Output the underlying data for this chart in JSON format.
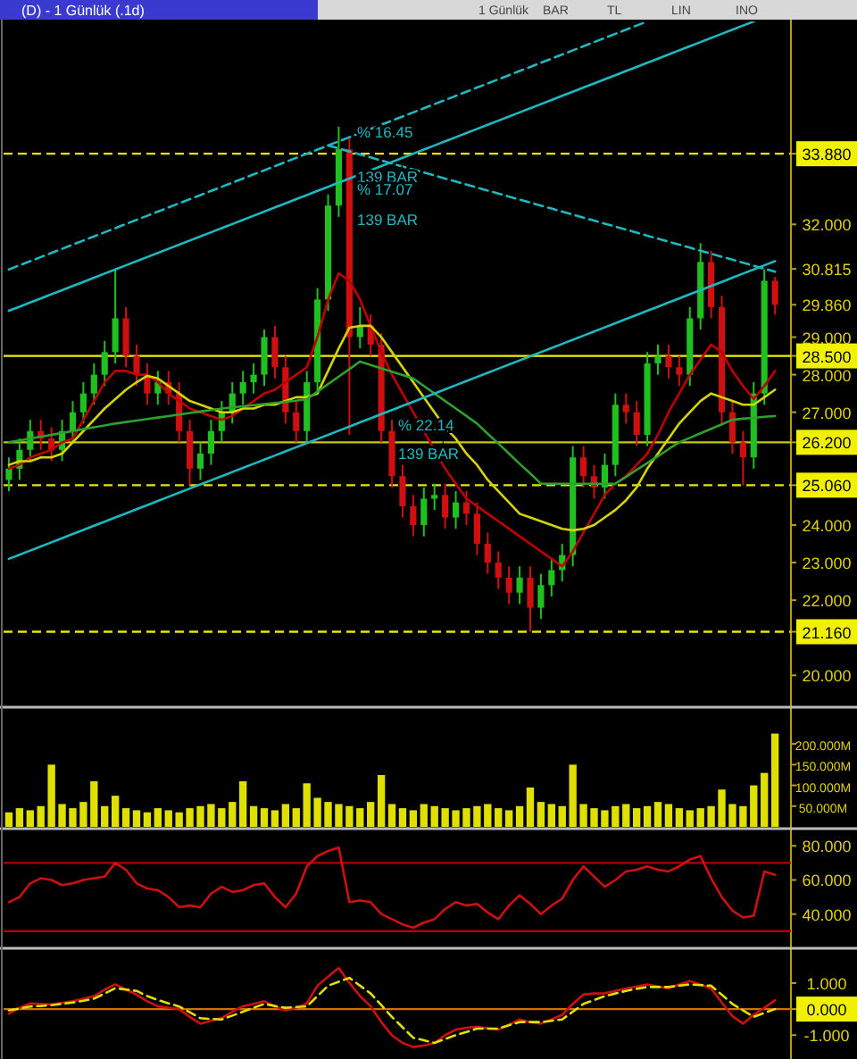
{
  "chart_data": [
    {
      "type": "candlestick",
      "title": "(D) - 1 Günlük (.1d)",
      "tick_labels": "y",
      "ylim": [
        19.2,
        37.4
      ],
      "yticks": [
        {
          "value": 20,
          "label": "20.000"
        },
        {
          "value": 21.16,
          "label": "21.160"
        },
        {
          "value": 22,
          "label": "22.000"
        },
        {
          "value": 23,
          "label": "23.000"
        },
        {
          "value": 24,
          "label": "24.000"
        },
        {
          "value": 25.06,
          "label": "25.060"
        },
        {
          "value": 26.2,
          "label": "26.200"
        },
        {
          "value": 27,
          "label": "27.000"
        },
        {
          "value": 28,
          "label": "28.000"
        },
        {
          "value": 28.5,
          "label": "28.500"
        },
        {
          "value": 29,
          "label": "29.000"
        },
        {
          "value": 29.86,
          "label": "29.860"
        },
        {
          "value": 30.815,
          "label": "30.815"
        },
        {
          "value": 32,
          "label": "32.000"
        },
        {
          "value": 33.88,
          "label": "33.880"
        }
      ],
      "categories": [
        null,
        null,
        null,
        null,
        null,
        null,
        null,
        null,
        null,
        null,
        null,
        null,
        null,
        null,
        null,
        null,
        null,
        null,
        null,
        null,
        null,
        null,
        null,
        null,
        null,
        null,
        null,
        null,
        null,
        null,
        null,
        null,
        null,
        null,
        null,
        null,
        null,
        null,
        null,
        null,
        null,
        null,
        null,
        null,
        null,
        null,
        null,
        null,
        null,
        null,
        null,
        null,
        null,
        null,
        null,
        null,
        null,
        null,
        null,
        null,
        null,
        null,
        null,
        null,
        null,
        null,
        null,
        null,
        null,
        null,
        null,
        null,
        null
      ],
      "ohlc": [
        [
          25.2,
          25.8,
          24.9,
          25.5
        ],
        [
          25.5,
          26.3,
          25.2,
          26.0
        ],
        [
          26.0,
          26.8,
          25.7,
          26.5
        ],
        [
          26.5,
          26.8,
          26.0,
          26.3
        ],
        [
          26.3,
          26.6,
          25.7,
          26.0
        ],
        [
          26.0,
          26.8,
          25.7,
          26.5
        ],
        [
          26.5,
          27.3,
          26.2,
          27.0
        ],
        [
          27.0,
          27.8,
          26.7,
          27.5
        ],
        [
          27.5,
          28.3,
          27.2,
          28.0
        ],
        [
          28.0,
          28.9,
          27.7,
          28.6
        ],
        [
          28.6,
          30.8,
          28.3,
          29.5
        ],
        [
          29.5,
          29.8,
          28.2,
          28.5
        ],
        [
          28.5,
          28.8,
          27.7,
          28.0
        ],
        [
          28.0,
          28.3,
          27.2,
          27.5
        ],
        [
          27.5,
          28.1,
          27.2,
          27.8
        ],
        [
          27.8,
          28.1,
          27.2,
          27.5
        ],
        [
          27.5,
          27.8,
          26.2,
          26.5
        ],
        [
          26.5,
          26.8,
          25.06,
          25.5
        ],
        [
          25.5,
          26.2,
          25.2,
          25.9
        ],
        [
          25.9,
          26.8,
          25.6,
          26.5
        ],
        [
          26.5,
          27.3,
          26.2,
          27.0
        ],
        [
          27.0,
          27.8,
          26.7,
          27.5
        ],
        [
          27.5,
          28.1,
          27.2,
          27.8
        ],
        [
          27.8,
          28.3,
          27.5,
          28.0
        ],
        [
          28.0,
          29.2,
          27.7,
          29.0
        ],
        [
          29.0,
          29.3,
          27.9,
          28.2
        ],
        [
          28.2,
          28.5,
          26.7,
          27.0
        ],
        [
          27.0,
          27.3,
          26.2,
          26.5
        ],
        [
          26.5,
          28.1,
          26.2,
          27.8
        ],
        [
          27.8,
          30.3,
          27.5,
          30.0
        ],
        [
          30.0,
          32.8,
          29.7,
          32.5
        ],
        [
          32.5,
          34.6,
          32.2,
          34.0
        ],
        [
          34.0,
          34.3,
          26.4,
          29.0
        ],
        [
          29.0,
          29.8,
          28.7,
          29.3
        ],
        [
          29.3,
          29.6,
          28.5,
          28.8
        ],
        [
          28.8,
          29.1,
          26.2,
          26.5
        ],
        [
          26.5,
          26.8,
          25.0,
          25.3
        ],
        [
          25.3,
          25.6,
          24.2,
          24.5
        ],
        [
          24.5,
          24.8,
          23.7,
          24.0
        ],
        [
          24.0,
          25.0,
          23.7,
          24.7
        ],
        [
          24.7,
          25.1,
          24.4,
          24.8
        ],
        [
          24.8,
          25.1,
          23.9,
          24.2
        ],
        [
          24.2,
          24.9,
          23.9,
          24.6
        ],
        [
          24.6,
          24.9,
          24.0,
          24.3
        ],
        [
          24.3,
          24.6,
          23.2,
          23.5
        ],
        [
          23.5,
          23.8,
          22.7,
          23.0
        ],
        [
          23.0,
          23.3,
          22.3,
          22.6
        ],
        [
          22.6,
          22.9,
          21.9,
          22.2
        ],
        [
          22.2,
          22.9,
          21.9,
          22.6
        ],
        [
          22.6,
          22.9,
          21.16,
          21.8
        ],
        [
          21.8,
          22.7,
          21.5,
          22.4
        ],
        [
          22.4,
          23.1,
          22.1,
          22.8
        ],
        [
          22.8,
          23.5,
          22.5,
          23.2
        ],
        [
          23.2,
          26.1,
          22.9,
          25.8
        ],
        [
          25.8,
          26.1,
          25.0,
          25.3
        ],
        [
          25.3,
          25.6,
          24.7,
          25.0
        ],
        [
          25.0,
          25.9,
          24.7,
          25.6
        ],
        [
          25.6,
          27.5,
          25.3,
          27.2
        ],
        [
          27.2,
          27.5,
          26.7,
          27.0
        ],
        [
          27.0,
          27.3,
          26.1,
          26.4
        ],
        [
          26.4,
          28.6,
          26.1,
          28.3
        ],
        [
          28.3,
          28.8,
          28.0,
          28.5
        ],
        [
          28.5,
          28.8,
          27.9,
          28.2
        ],
        [
          28.2,
          28.5,
          27.7,
          28.0
        ],
        [
          28.0,
          29.8,
          27.7,
          29.5
        ],
        [
          29.5,
          31.5,
          29.2,
          31.0
        ],
        [
          31.0,
          31.3,
          29.5,
          29.8
        ],
        [
          29.8,
          30.1,
          26.7,
          27.0
        ],
        [
          27.0,
          27.3,
          25.9,
          26.2
        ],
        [
          26.2,
          26.5,
          25.06,
          25.8
        ],
        [
          25.8,
          27.8,
          25.5,
          27.5
        ],
        [
          27.5,
          30.8,
          27.2,
          30.5
        ],
        [
          30.5,
          30.6,
          29.6,
          29.86
        ]
      ],
      "ref_lines": [
        {
          "axis": "y",
          "value": 33.88,
          "color": "#e6e600",
          "line_style": "dashed"
        },
        {
          "axis": "y",
          "value": 28.5,
          "color": "#f0f000",
          "line_style": "solid"
        },
        {
          "axis": "y",
          "value": 26.2,
          "color": "#c8c800",
          "line_style": "solid"
        },
        {
          "axis": "y",
          "value": 25.06,
          "color": "#e6e600",
          "line_style": "dashed"
        },
        {
          "axis": "y",
          "value": 21.16,
          "color": "#e6e600",
          "line_style": "dashed"
        }
      ],
      "annotations": [
        "1 Günlük",
        "BAR",
        "TL",
        "LIN",
        "INO"
      ]
    },
    {
      "type": "line",
      "tick_labels": false,
      "ylim": [
        19.2,
        37.4
      ],
      "categories": [
        null,
        null,
        null,
        null,
        null,
        null,
        null,
        null,
        null,
        null,
        null,
        null,
        null,
        null,
        null,
        null,
        null,
        null,
        null,
        null,
        null,
        null,
        null,
        null,
        null,
        null,
        null,
        null,
        null,
        null,
        null,
        null,
        null,
        null,
        null,
        null,
        null,
        null,
        null,
        null,
        null,
        null,
        null,
        null,
        null,
        null,
        null,
        null,
        null,
        null,
        null,
        null,
        null,
        null,
        null,
        null,
        null,
        null,
        null,
        null,
        null,
        null,
        null,
        null,
        null,
        null,
        null,
        null,
        null,
        null,
        null,
        null,
        null
      ],
      "annotations": [
        "% 16.45",
        "139 BAR",
        "% 17.07",
        "139 BAR",
        "% 22.14",
        "139 BAR"
      ],
      "series": [
        {
          "color": "#c00000",
          "values": [
            25.5,
            25.6,
            25.8,
            25.9,
            26.0,
            26.2,
            26.3,
            26.8,
            27.3,
            27.8,
            28.1,
            28.1,
            28.0,
            28.0,
            27.8,
            27.5,
            27.3,
            27.1,
            27.0,
            26.9,
            26.8,
            26.9,
            27.1,
            27.3,
            27.5,
            27.6,
            27.8,
            28.0,
            28.2,
            29.0,
            30.0,
            30.7,
            30.5,
            30.0,
            29.3,
            28.6,
            28.0,
            27.5,
            27.0,
            26.5,
            26.0,
            25.5,
            25.1,
            24.7,
            24.5,
            24.3,
            24.1,
            23.9,
            23.7,
            23.5,
            23.3,
            23.1,
            22.9,
            23.3,
            23.8,
            24.3,
            24.8,
            25.1,
            25.3,
            25.6,
            25.9,
            26.4,
            27.0,
            27.5,
            28.0,
            28.4,
            28.8,
            28.6,
            28.1,
            27.7,
            27.35,
            27.7,
            28.1
          ]
        },
        {
          "color": "#d4d400",
          "values": [
            25.6,
            25.7,
            25.7,
            25.8,
            25.8,
            25.9,
            26.2,
            26.5,
            26.8,
            27.1,
            27.35,
            27.6,
            27.8,
            27.97,
            27.9,
            27.7,
            27.5,
            27.3,
            27.2,
            27.1,
            27.0,
            27.0,
            27.1,
            27.1,
            27.2,
            27.2,
            27.3,
            27.4,
            27.4,
            27.5,
            28.1,
            28.7,
            29.25,
            29.3,
            29.3,
            29.0,
            28.6,
            28.2,
            27.8,
            27.4,
            27.0,
            26.6,
            26.3,
            25.9,
            25.6,
            25.2,
            24.9,
            24.6,
            24.3,
            24.2,
            24.1,
            24.0,
            23.9,
            23.86,
            23.9,
            24.0,
            24.2,
            24.4,
            24.66,
            25.0,
            25.5,
            25.9,
            26.3,
            26.7,
            27.0,
            27.3,
            27.5,
            27.4,
            27.3,
            27.2,
            27.2,
            27.4,
            27.6
          ]
        },
        {
          "color": "#2ea02e",
          "values": [
            26.2,
            26.25,
            26.3,
            26.35,
            26.4,
            26.45,
            26.5,
            26.55,
            26.6,
            26.65,
            26.7,
            26.74,
            26.78,
            26.82,
            26.86,
            26.9,
            26.94,
            26.98,
            27.02,
            27.06,
            27.1,
            27.13,
            27.16,
            27.19,
            27.22,
            27.25,
            27.28,
            27.31,
            27.35,
            27.55,
            27.75,
            27.95,
            28.15,
            28.35,
            28.26,
            28.17,
            28.08,
            27.99,
            27.9,
            27.7,
            27.5,
            27.3,
            27.1,
            26.9,
            26.7,
            26.43,
            26.17,
            25.9,
            25.63,
            25.37,
            25.1,
            25.1,
            25.1,
            25.1,
            25.1,
            25.1,
            25.1,
            25.1,
            25.28,
            25.47,
            25.65,
            25.83,
            26.02,
            26.2,
            26.32,
            26.44,
            26.56,
            26.68,
            26.8,
            26.83,
            26.85,
            26.88,
            26.9
          ]
        },
        {
          "color": "#1fb8c0",
          "values": [
            23.1,
            23.21,
            23.32,
            23.43,
            23.54,
            23.65,
            23.76,
            23.87,
            23.98,
            24.09,
            24.2,
            24.31,
            24.42,
            24.53,
            24.64,
            24.75,
            24.86,
            24.97,
            25.08,
            25.19,
            25.3,
            25.41,
            25.52,
            25.63,
            25.74,
            25.85,
            25.96,
            26.07,
            26.18,
            26.29,
            26.4,
            26.51,
            26.62,
            26.73,
            26.84,
            26.95,
            27.06,
            27.17,
            27.28,
            27.39,
            27.5,
            27.61,
            27.72,
            27.83,
            27.94,
            28.05,
            28.16,
            28.27,
            28.38,
            28.49,
            28.6,
            28.71,
            28.82,
            28.93,
            29.04,
            29.15,
            29.26,
            29.37,
            29.48,
            29.59,
            29.7,
            29.81,
            29.92,
            30.03,
            30.14,
            30.25,
            30.36,
            30.47,
            30.58,
            30.69,
            30.8,
            30.91,
            31.02
          ]
        },
        {
          "color": "#1fb8c0",
          "values": [
            29.7,
            29.81,
            29.92,
            30.03,
            30.14,
            30.25,
            30.36,
            30.47,
            30.58,
            30.69,
            30.8,
            30.91,
            31.02,
            31.13,
            31.24,
            31.35,
            31.46,
            31.57,
            31.68,
            31.79,
            31.9,
            32.01,
            32.12,
            32.23,
            32.34,
            32.45,
            32.56,
            32.67,
            32.78,
            32.89,
            33.0,
            33.11,
            33.22,
            33.33,
            33.44,
            33.55,
            33.66,
            33.77,
            33.88,
            33.99,
            34.1,
            34.21,
            34.32,
            34.43,
            34.54,
            34.65,
            34.76,
            34.87,
            34.98,
            35.09,
            35.2,
            35.31,
            35.42,
            35.53,
            35.64,
            35.75,
            35.86,
            35.97,
            36.08,
            36.19,
            36.3,
            36.41,
            36.52,
            36.63,
            36.74,
            36.85,
            36.96,
            37.07,
            37.18,
            37.29,
            37.4,
            null,
            null
          ]
        },
        {
          "color": "#1fb8c0",
          "line_style": "dashed",
          "values": [
            30.8,
            30.91,
            31.02,
            31.13,
            31.24,
            31.35,
            31.46,
            31.57,
            31.68,
            31.79,
            31.9,
            32.01,
            32.12,
            32.23,
            32.34,
            32.45,
            32.56,
            32.67,
            32.78,
            32.89,
            33.0,
            33.11,
            33.22,
            33.33,
            33.44,
            33.55,
            33.66,
            33.77,
            33.88,
            33.99,
            34.1,
            34.21,
            34.32,
            34.43,
            34.54,
            34.65,
            34.76,
            34.87,
            34.98,
            35.09,
            35.2,
            35.31,
            35.42,
            35.53,
            35.64,
            35.75,
            35.86,
            35.97,
            36.08,
            36.19,
            36.3,
            36.41,
            36.52,
            36.63,
            36.74,
            36.85,
            36.96,
            37.07,
            37.18,
            37.29,
            37.4,
            null,
            null,
            null,
            null,
            null,
            null,
            null,
            null,
            null,
            null,
            null,
            null
          ]
        },
        {
          "color": "#1fb8c0",
          "line_style": "dashed",
          "values": [
            null,
            null,
            null,
            null,
            null,
            null,
            null,
            null,
            null,
            null,
            null,
            null,
            null,
            null,
            null,
            null,
            null,
            null,
            null,
            null,
            null,
            null,
            null,
            null,
            null,
            null,
            null,
            null,
            null,
            null,
            34.1,
            34.02,
            33.94,
            33.86,
            33.78,
            33.7,
            33.62,
            33.54,
            33.46,
            33.38,
            33.3,
            33.22,
            33.14,
            33.06,
            32.98,
            32.9,
            32.82,
            32.74,
            32.66,
            32.58,
            32.5,
            32.42,
            32.34,
            32.26,
            32.18,
            32.1,
            32.02,
            31.94,
            31.86,
            31.78,
            31.7,
            31.62,
            31.54,
            31.46,
            31.38,
            31.3,
            31.22,
            31.14,
            31.06,
            30.98,
            30.9,
            30.82,
            30.74
          ]
        }
      ]
    },
    {
      "type": "bar",
      "tick_labels": "y",
      "color": "#e0e000",
      "ylim": [
        0,
        280
      ],
      "yticks": [
        {
          "value": 50,
          "label": "50.000M"
        },
        {
          "value": 100,
          "label": "100.000M"
        },
        {
          "value": 150,
          "label": "150.000M"
        },
        {
          "value": 200,
          "label": "200.000M"
        }
      ],
      "categories": [
        null,
        null,
        null,
        null,
        null,
        null,
        null,
        null,
        null,
        null,
        null,
        null,
        null,
        null,
        null,
        null,
        null,
        null,
        null,
        null,
        null,
        null,
        null,
        null,
        null,
        null,
        null,
        null,
        null,
        null,
        null,
        null,
        null,
        null,
        null,
        null,
        null,
        null,
        null,
        null,
        null,
        null,
        null,
        null,
        null,
        null,
        null,
        null,
        null,
        null,
        null,
        null,
        null,
        null,
        null,
        null,
        null,
        null,
        null,
        null,
        null,
        null,
        null,
        null,
        null,
        null,
        null,
        null,
        null,
        null,
        null,
        null,
        null
      ],
      "values": [
        35,
        45,
        40,
        50,
        150,
        55,
        45,
        60,
        110,
        50,
        75,
        45,
        40,
        35,
        45,
        40,
        35,
        45,
        50,
        55,
        45,
        60,
        110,
        50,
        45,
        40,
        55,
        45,
        105,
        70,
        60,
        55,
        50,
        45,
        60,
        125,
        55,
        45,
        40,
        55,
        50,
        45,
        40,
        45,
        50,
        55,
        45,
        40,
        50,
        95,
        60,
        55,
        50,
        150,
        55,
        45,
        40,
        50,
        55,
        45,
        50,
        60,
        55,
        45,
        40,
        45,
        50,
        90,
        55,
        50,
        100,
        130,
        225
      ]
    },
    {
      "type": "line",
      "tick_labels": "y",
      "ylim": [
        21,
        88
      ],
      "yticks": [
        {
          "value": 40,
          "label": "40.000"
        },
        {
          "value": 60,
          "label": "60.000"
        },
        {
          "value": 80,
          "label": "80.000"
        }
      ],
      "categories": [
        null,
        null,
        null,
        null,
        null,
        null,
        null,
        null,
        null,
        null,
        null,
        null,
        null,
        null,
        null,
        null,
        null,
        null,
        null,
        null,
        null,
        null,
        null,
        null,
        null,
        null,
        null,
        null,
        null,
        null,
        null,
        null,
        null,
        null,
        null,
        null,
        null,
        null,
        null,
        null,
        null,
        null,
        null,
        null,
        null,
        null,
        null,
        null,
        null,
        null,
        null,
        null,
        null,
        null,
        null,
        null,
        null,
        null,
        null,
        null,
        null,
        null,
        null,
        null,
        null,
        null,
        null,
        null,
        null,
        null,
        null,
        null,
        null
      ],
      "ref_lines": [
        {
          "axis": "y",
          "value": 70,
          "color": "#b00000",
          "line_style": "solid"
        },
        {
          "axis": "y",
          "value": 30,
          "color": "#b00000",
          "line_style": "solid"
        }
      ],
      "series": [
        {
          "color": "#d01010",
          "values": [
            47,
            50,
            58,
            61,
            60,
            57,
            58,
            60,
            61,
            62,
            70,
            66,
            58,
            55,
            54,
            50,
            44,
            45,
            44,
            52,
            56,
            53,
            54,
            57,
            58,
            50,
            44,
            52,
            68,
            74,
            77,
            79,
            47,
            48,
            47,
            40,
            37,
            34,
            32,
            35,
            37,
            43,
            47,
            45,
            46,
            41,
            37,
            45,
            51,
            46,
            40,
            45,
            49,
            60,
            68,
            62,
            56,
            60,
            65,
            66,
            68,
            66,
            65,
            68,
            72,
            74,
            61,
            50,
            42,
            38,
            39,
            65,
            63
          ]
        }
      ]
    },
    {
      "type": "line",
      "tick_labels": "y",
      "ylim": [
        -1.85,
        2.2
      ],
      "yticks": [
        {
          "value": -1,
          "label": "-1.000"
        },
        {
          "value": 0,
          "label": "0.000"
        },
        {
          "value": 1,
          "label": "1.000"
        }
      ],
      "categories": [
        null,
        null,
        null,
        null,
        null,
        null,
        null,
        null,
        null,
        null,
        null,
        null,
        null,
        null,
        null,
        null,
        null,
        null,
        null,
        null,
        null,
        null,
        null,
        null,
        null,
        null,
        null,
        null,
        null,
        null,
        null,
        null,
        null,
        null,
        null,
        null,
        null,
        null,
        null,
        null,
        null,
        null,
        null,
        null,
        null,
        null,
        null,
        null,
        null,
        null,
        null,
        null,
        null,
        null,
        null,
        null,
        null,
        null,
        null,
        null,
        null,
        null,
        null,
        null,
        null,
        null,
        null,
        null,
        null,
        null,
        null,
        null,
        null
      ],
      "ref_lines": [
        {
          "axis": "y",
          "value": 0,
          "color": "#d07000",
          "line_style": "solid"
        }
      ],
      "series": [
        {
          "color": "#d01010",
          "values": [
            -0.18,
            0.05,
            0.22,
            0.2,
            0.18,
            0.24,
            0.3,
            0.4,
            0.5,
            0.75,
            0.95,
            0.75,
            0.56,
            0.3,
            0.11,
            0.05,
            0,
            -0.3,
            -0.56,
            -0.45,
            -0.34,
            -0.1,
            0.11,
            0.2,
            0.3,
            0.1,
            -0.05,
            0.05,
            0.22,
            0.9,
            1.25,
            1.58,
            1.01,
            0.5,
            0.11,
            -0.5,
            -1.01,
            -1.3,
            -1.46,
            -1.4,
            -1.3,
            -1.0,
            -0.79,
            -0.72,
            -0.68,
            -0.74,
            -0.79,
            -0.6,
            -0.4,
            -0.5,
            -0.56,
            -0.4,
            -0.22,
            0.2,
            0.56,
            0.6,
            0.61,
            0.7,
            0.79,
            0.87,
            0.95,
            0.87,
            0.79,
            0.95,
            1.08,
            0.95,
            0.79,
            0.25,
            -0.27,
            -0.56,
            -0.22,
            0.05,
            0.34
          ]
        },
        {
          "color": "#e0e000",
          "line_style": "dashed",
          "values": [
            -0.05,
            0.02,
            0.1,
            0.12,
            0.15,
            0.2,
            0.25,
            0.32,
            0.4,
            0.6,
            0.8,
            0.75,
            0.7,
            0.5,
            0.35,
            0.22,
            0.1,
            -0.12,
            -0.35,
            -0.38,
            -0.4,
            -0.25,
            -0.1,
            0.05,
            0.2,
            0.12,
            0.05,
            0.08,
            0.1,
            0.5,
            0.9,
            1.05,
            1.2,
            0.9,
            0.6,
            0.15,
            -0.3,
            -0.7,
            -1.1,
            -1.2,
            -1.3,
            -1.15,
            -1.0,
            -0.88,
            -0.75,
            -0.75,
            -0.75,
            -0.62,
            -0.5,
            -0.5,
            -0.5,
            -0.45,
            -0.4,
            -0.1,
            0.2,
            0.35,
            0.5,
            0.6,
            0.7,
            0.78,
            0.85,
            0.85,
            0.85,
            0.9,
            0.95,
            0.92,
            0.9,
            0.55,
            0.2,
            -0.05,
            -0.3,
            -0.15,
            0.0
          ]
        }
      ]
    }
  ]
}
